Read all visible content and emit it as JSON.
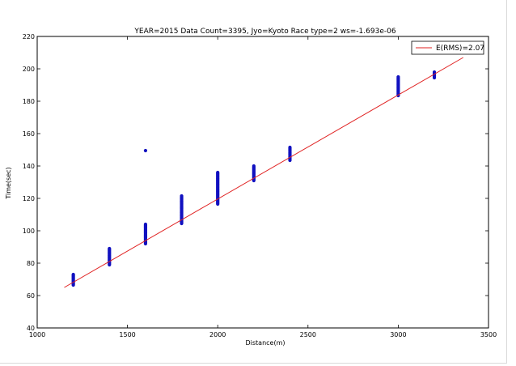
{
  "chart_data": {
    "type": "scatter",
    "title": "YEAR=2015 Data Count=3395, Jyo=Kyoto Race type=2 ws=-1.693e-06",
    "xlabel": "Distance(m)",
    "ylabel": "Time(sec)",
    "xlim": [
      1000,
      3500
    ],
    "ylim": [
      40,
      220
    ],
    "xticks": [
      "1000",
      "1500",
      "2000",
      "2500",
      "3000",
      "3500"
    ],
    "yticks": [
      "40",
      "60",
      "80",
      "100",
      "120",
      "140",
      "160",
      "180",
      "200",
      "220"
    ],
    "grid": false,
    "legend": {
      "position": "top-right",
      "entries": [
        "E(RMS)=2.07"
      ]
    },
    "colors": {
      "points": "#1010c0",
      "fit_line": "#e02020"
    },
    "series": [
      {
        "kind": "points",
        "clusters": [
          {
            "x": 1200,
            "y_min": 66.5,
            "y_max": 73
          },
          {
            "x": 1400,
            "y_min": 79,
            "y_max": 89
          },
          {
            "x": 1600,
            "y_min": 92,
            "y_max": 104
          },
          {
            "x": 1800,
            "y_min": 104.5,
            "y_max": 121.5
          },
          {
            "x": 2000,
            "y_min": 116.5,
            "y_max": 136
          },
          {
            "x": 2200,
            "y_min": 131,
            "y_max": 140
          },
          {
            "x": 2400,
            "y_min": 143.5,
            "y_max": 151.5
          },
          {
            "x": 3000,
            "y_min": 183.5,
            "y_max": 195
          },
          {
            "x": 3200,
            "y_min": 194.5,
            "y_max": 198
          }
        ],
        "outliers": [
          {
            "x": 1600,
            "y": 149.5
          }
        ]
      },
      {
        "name": "E(RMS)=2.07",
        "kind": "line",
        "x": [
          1150,
          3360
        ],
        "y": [
          65,
          207
        ]
      }
    ]
  }
}
